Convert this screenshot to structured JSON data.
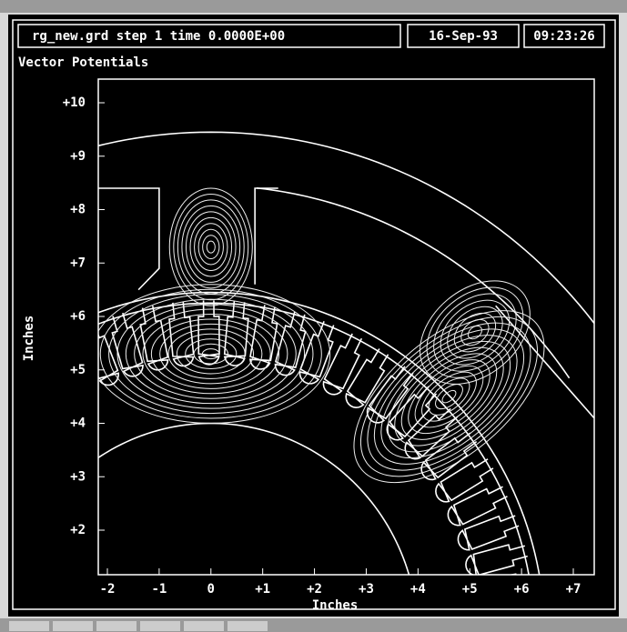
{
  "window": {
    "file_info": "rg_new.grd step 1 time 0.0000E+00",
    "date": "16-Sep-93",
    "time": "09:23:26"
  },
  "plot": {
    "title": "Vector Potentials",
    "x_label": "Inches",
    "y_label": "Inches",
    "xticks": [
      -2,
      -1,
      0,
      {
        "value": 1,
        "label": "+1"
      },
      {
        "value": 2,
        "label": "+2"
      },
      {
        "value": 3,
        "label": "+3"
      },
      {
        "value": 4,
        "label": "+4"
      },
      {
        "value": 5,
        "label": "+5"
      },
      {
        "value": 6,
        "label": "+6"
      },
      {
        "value": 7,
        "label": "+7"
      }
    ],
    "yticks": [
      {
        "value": 2,
        "label": "+2"
      },
      {
        "value": 3,
        "label": "+3"
      },
      {
        "value": 4,
        "label": "+4"
      },
      {
        "value": 5,
        "label": "+5"
      },
      {
        "value": 6,
        "label": "+6"
      },
      {
        "value": 7,
        "label": "+7"
      },
      {
        "value": 8,
        "label": "+8"
      },
      {
        "value": 9,
        "label": "+9"
      },
      {
        "value": 10,
        "label": "+10"
      }
    ]
  }
}
